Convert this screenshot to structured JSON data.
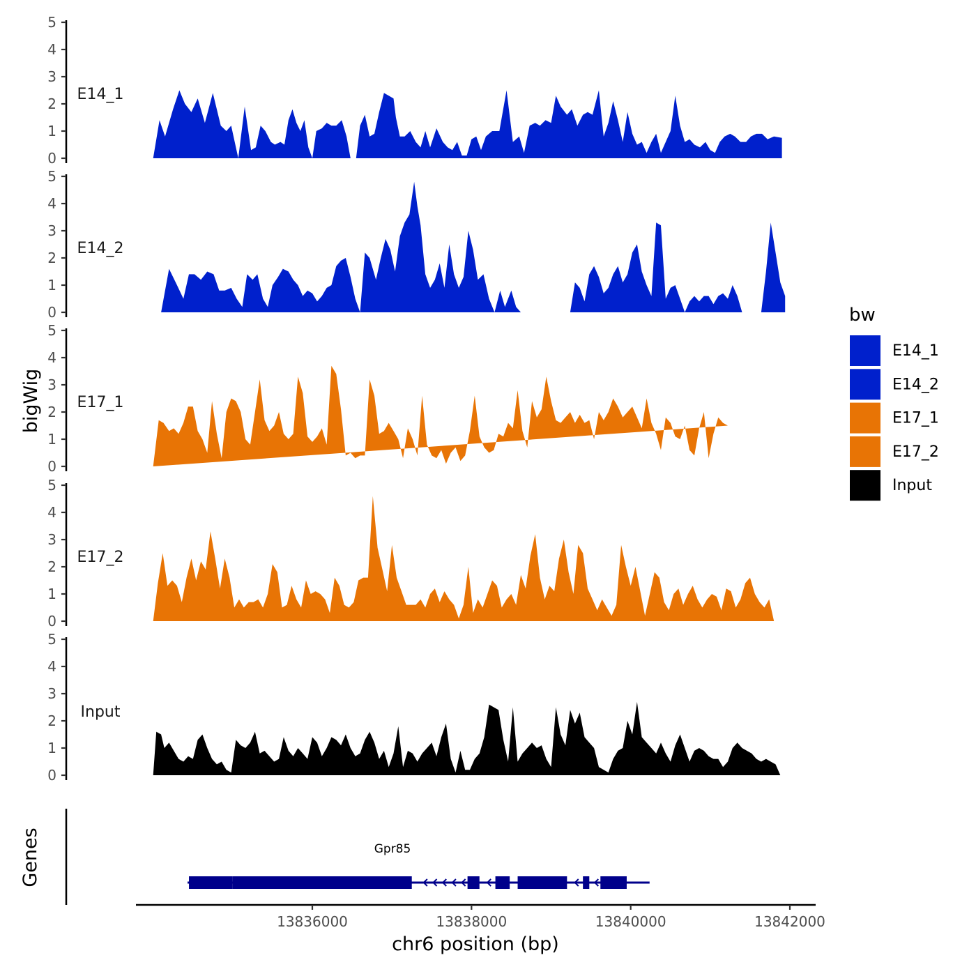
{
  "chart_data": {
    "type": "area",
    "ylabel": "bigWig",
    "xlabel": "chr6 position (bp)",
    "genes_label": "Genes",
    "ylim": [
      0,
      5
    ],
    "yticks": [
      0,
      1,
      2,
      3,
      4,
      5
    ],
    "xlim": [
      13833600,
      13842200
    ],
    "xticks": [
      13836000,
      13838000,
      13840000,
      13842000
    ],
    "xtick_labels": [
      "13836000",
      "13838000",
      "13840000",
      "13842000"
    ],
    "legend": {
      "title": "bw",
      "position": "right",
      "entries": [
        {
          "name": "E14_1",
          "color": "#0020CC"
        },
        {
          "name": "E14_2",
          "color": "#0020CC"
        },
        {
          "name": "E17_1",
          "color": "#E87405"
        },
        {
          "name": "E17_2",
          "color": "#E87405"
        },
        {
          "name": "Input",
          "color": "#000000"
        }
      ]
    },
    "series": [
      {
        "name": "E14_1",
        "label": "E14_1",
        "color": "#0020CC",
        "x": [
          13834000,
          13834080,
          13834150,
          13834250,
          13834330,
          13834400,
          13834480,
          13834560,
          13834650,
          13834750,
          13834850,
          13834920,
          13834980,
          13835070,
          13835150,
          13835230,
          13835290,
          13835350,
          13835410,
          13835480,
          13835530,
          13835600,
          13835650,
          13835700,
          13835750,
          13835800,
          13835850,
          13835900,
          13835950,
          13836000,
          13836050,
          13836120,
          13836180,
          13836240,
          13836300,
          13836370,
          13836430,
          13836480,
          13836550,
          13836600,
          13836660,
          13836720,
          13836780,
          13836840,
          13836900,
          13836960,
          13837020,
          13837050,
          13837100,
          13837160,
          13837230,
          13837300,
          13837360,
          13837420,
          13837480,
          13837560,
          13837640,
          13837700,
          13837760,
          13837820,
          13837880,
          13837940,
          13838000,
          13838060,
          13838120,
          13838180,
          13838260,
          13838350,
          13838440,
          13838520,
          13838600,
          13838660,
          13838730,
          13838800,
          13838860,
          13838930,
          13839000,
          13839060,
          13839120,
          13839200,
          13839260,
          13839330,
          13839400,
          13839460,
          13839520,
          13839600,
          13839660,
          13839720,
          13839780,
          13839840,
          13839900,
          13839960,
          13840020,
          13840080,
          13840140,
          13840200,
          13840260,
          13840320,
          13840380,
          13840440,
          13840500,
          13840560,
          13840620,
          13840680,
          13840740,
          13840800,
          13840870,
          13840940,
          13841000,
          13841060,
          13841120,
          13841180,
          13841250,
          13841310,
          13841380,
          13841450,
          13841510,
          13841580,
          13841650,
          13841720,
          13841800,
          13841900
        ],
        "y": [
          0,
          1.4,
          0.8,
          1.8,
          2.5,
          2.0,
          1.7,
          2.2,
          1.3,
          2.4,
          1.2,
          1.0,
          1.2,
          0,
          1.9,
          0.3,
          0.4,
          1.2,
          1.0,
          0.6,
          0.5,
          0.6,
          0.5,
          1.4,
          1.8,
          1.3,
          1.0,
          1.4,
          0.4,
          0,
          1.0,
          1.1,
          1.3,
          1.2,
          1.2,
          1.4,
          0.8,
          0,
          0,
          1.2,
          1.6,
          0.8,
          0.9,
          1.7,
          2.4,
          2.3,
          2.2,
          1.5,
          0.8,
          0.8,
          1.0,
          0.6,
          0.4,
          1.0,
          0.4,
          1.1,
          0.6,
          0.4,
          0.3,
          0.6,
          0.1,
          0.1,
          0.7,
          0.8,
          0.3,
          0.8,
          1.0,
          1.0,
          2.5,
          0.6,
          0.8,
          0.2,
          1.2,
          1.3,
          1.2,
          1.4,
          1.3,
          2.3,
          1.9,
          1.6,
          1.8,
          1.2,
          1.6,
          1.7,
          1.6,
          2.5,
          0.8,
          1.3,
          2.1,
          1.4,
          0.6,
          1.7,
          0.9,
          0.5,
          0.6,
          0.2,
          0.6,
          0.9,
          0.2,
          0.6,
          1.0,
          2.3,
          1.2,
          0.6,
          0.7,
          0.5,
          0.4,
          0.6,
          0.3,
          0.2,
          0.6,
          0.8,
          0.9,
          0.8,
          0.6,
          0.6,
          0.8,
          0.9,
          0.9,
          0.7,
          0.8,
          0.75
        ],
        "hw": "ok"
      }
    ]
  },
  "tracks_meta": "see script"
}
